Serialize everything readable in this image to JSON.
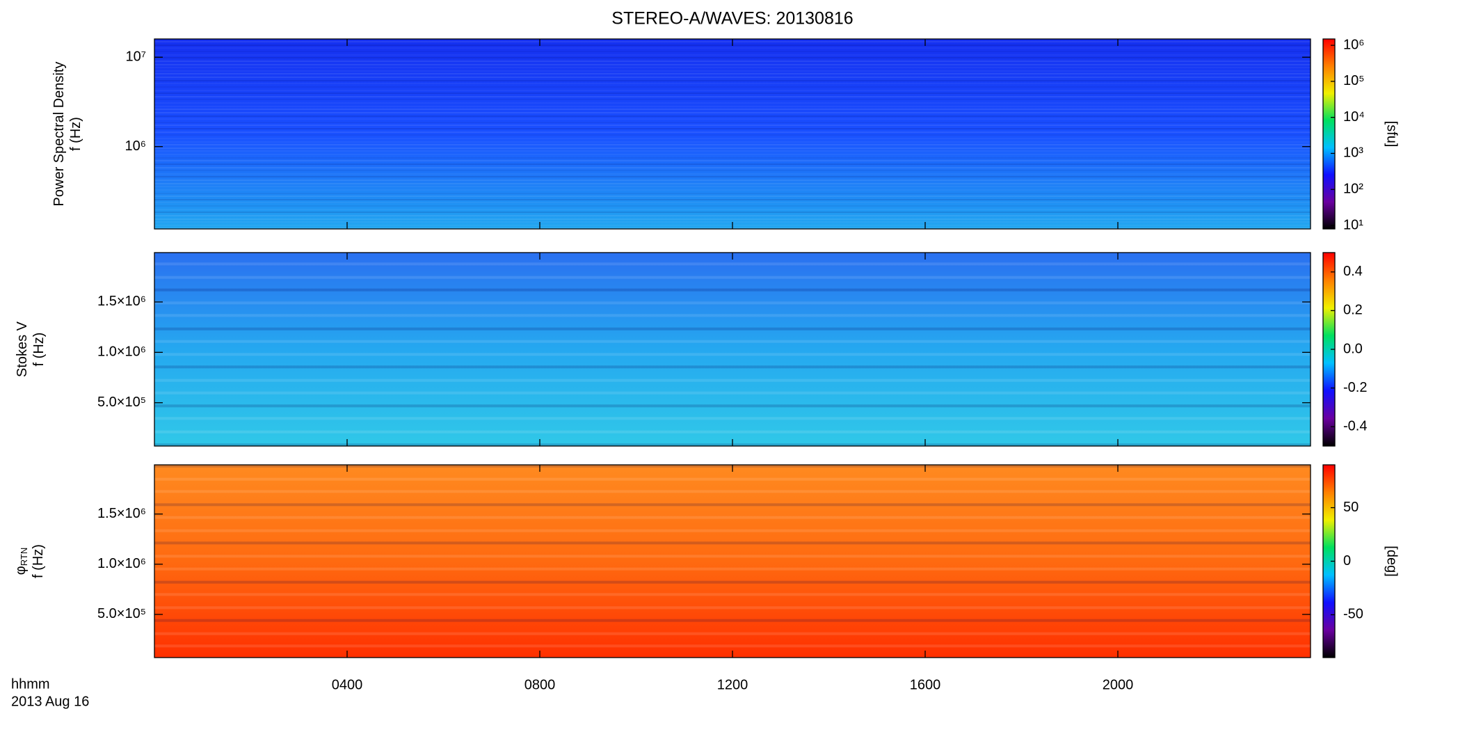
{
  "title": "STEREO-A/WAVES: 20130816",
  "x_axis": {
    "xlim": [
      0,
      24
    ],
    "xlabel": "hhmm",
    "date": "2013 Aug 16",
    "xticks": [
      {
        "value": 4,
        "label": "0400"
      },
      {
        "value": 8,
        "label": "0800"
      },
      {
        "value": 12,
        "label": "1200"
      },
      {
        "value": 16,
        "label": "1600"
      },
      {
        "value": 20,
        "label": "2000"
      }
    ]
  },
  "chart_data": [
    {
      "type": "heatmap",
      "ylabel": [
        "Power Spectral Density",
        "f (Hz)"
      ],
      "yscale": "log",
      "ylim": [
        120000,
        16000000
      ],
      "yticks": [
        {
          "value": 1000000,
          "label": "10⁶"
        },
        {
          "value": 10000000,
          "label": "10⁷"
        }
      ],
      "background": [
        "#1530f0",
        "#1a50ff",
        "#22a8f0"
      ],
      "colorbar": {
        "scale": "log",
        "lim": [
          8,
          1500000
        ],
        "label": "[sfu]",
        "colors": [
          "#000000",
          "#6a00a0",
          "#1010ff",
          "#00c0ff",
          "#00e060",
          "#f0f000",
          "#ff8000",
          "#ff0000"
        ],
        "ticks": [
          {
            "value": 10,
            "label": "10¹"
          },
          {
            "value": 100,
            "label": "10²"
          },
          {
            "value": 1000,
            "label": "10³"
          },
          {
            "value": 10000,
            "label": "10⁴"
          },
          {
            "value": 100000,
            "label": "10⁵"
          },
          {
            "value": 1000000,
            "label": "10⁶"
          }
        ]
      }
    },
    {
      "type": "heatmap",
      "ylabel": [
        "Stokes V",
        "f (Hz)"
      ],
      "yscale": "linear",
      "ylim": [
        70000,
        1990000
      ],
      "yticks": [
        {
          "value": 500000,
          "label": "5.0×10⁵"
        },
        {
          "value": 1000000,
          "label": "1.0×10⁶"
        },
        {
          "value": 1500000,
          "label": "1.5×10⁶"
        }
      ],
      "background": [
        "#2a70f0",
        "#25a8f0",
        "#30c8e8"
      ],
      "colorbar": {
        "scale": "linear",
        "lim": [
          -0.5,
          0.5
        ],
        "label": "",
        "colors": [
          "#000000",
          "#6a00a0",
          "#1010ff",
          "#00c0ff",
          "#00e060",
          "#f0f000",
          "#ff8000",
          "#ff0000"
        ],
        "ticks": [
          -0.4,
          -0.2,
          {
            "value": 0,
            "label": "0.0"
          },
          0.2,
          0.4
        ]
      }
    },
    {
      "type": "heatmap",
      "ylabel": [
        "φ",
        "RTN",
        "f (Hz)"
      ],
      "yscale": "linear",
      "ylim": [
        70000,
        1990000
      ],
      "yticks": [
        {
          "value": 500000,
          "label": "5.0×10⁵"
        },
        {
          "value": 1000000,
          "label": "1.0×10⁶"
        },
        {
          "value": 1500000,
          "label": "1.5×10⁶"
        }
      ],
      "background": [
        "#ff8a20",
        "#ff6a10",
        "#ff3000"
      ],
      "colorbar": {
        "scale": "linear",
        "lim": [
          -90,
          90
        ],
        "label": "[deg]",
        "colors": [
          "#000000",
          "#6a00a0",
          "#1010ff",
          "#00c0ff",
          "#00e060",
          "#f0f000",
          "#ff8000",
          "#ff0000"
        ],
        "ticks": [
          -50,
          0,
          50
        ]
      }
    }
  ]
}
